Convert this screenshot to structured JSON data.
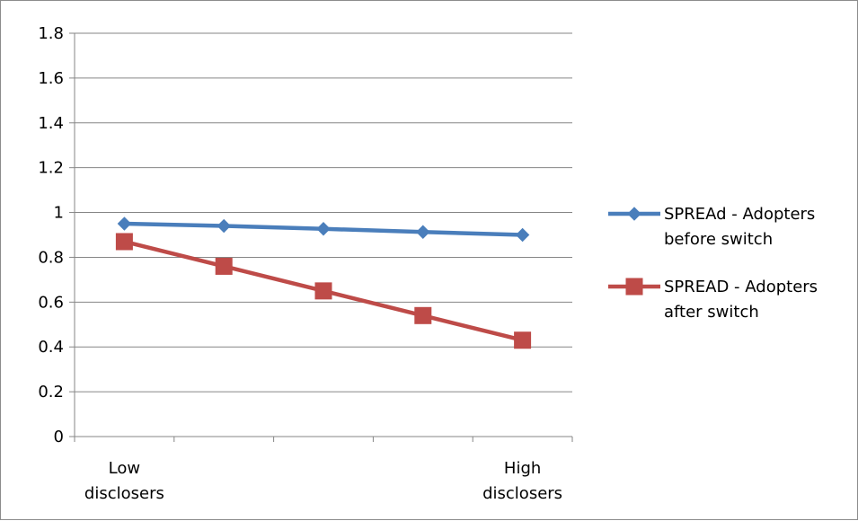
{
  "chart_data": {
    "type": "line",
    "title": "",
    "xlabel": "",
    "ylabel": "",
    "categories": [
      "1",
      "2",
      "3",
      "4",
      "5"
    ],
    "x_tick_labels": [
      {
        "category_index": 0,
        "lines": [
          "Low",
          "disclosers"
        ]
      },
      {
        "category_index": 4,
        "lines": [
          "High",
          "disclosers"
        ]
      }
    ],
    "ylim": [
      0,
      1.8
    ],
    "y_ticks": [
      "0",
      "0.2",
      "0.4",
      "0.6",
      "0.8",
      "1",
      "1.2",
      "1.4",
      "1.6",
      "1.8"
    ],
    "grid": true,
    "legend_position": "right",
    "series": [
      {
        "name": "SPREAd - Adopters before switch",
        "legend_lines": [
          "SPREAd - Adopters",
          "before switch"
        ],
        "color": "#4a7ebb",
        "marker": "diamond",
        "values": [
          0.95,
          0.94,
          0.927,
          0.913,
          0.9
        ]
      },
      {
        "name": "SPREAD - Adopters after switch",
        "legend_lines": [
          "SPREAD - Adopters",
          "after switch"
        ],
        "color": "#be4b48",
        "marker": "square",
        "values": [
          0.87,
          0.76,
          0.65,
          0.54,
          0.43
        ]
      }
    ]
  }
}
